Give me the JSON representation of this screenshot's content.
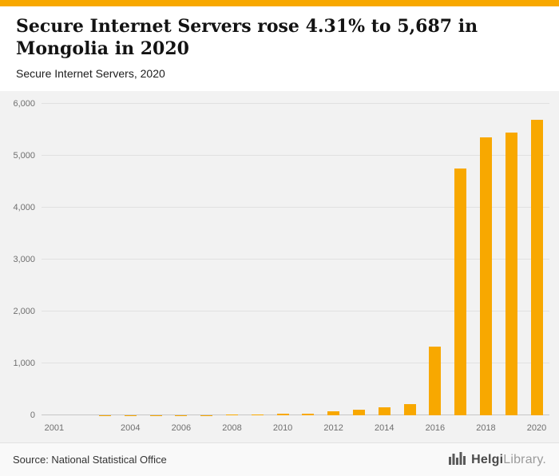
{
  "accent_color": "#F8A800",
  "header": {
    "title": "Secure Internet Servers rose 4.31% to 5,687 in Mongolia in 2020",
    "subtitle": "Secure Internet Servers, 2020"
  },
  "footer": {
    "source": "Source: National Statistical Office",
    "brand_bold": "Helgi",
    "brand_light": "Library."
  },
  "chart_data": {
    "type": "bar",
    "title": "Secure Internet Servers, 2020",
    "categories": [
      "2001",
      "2002",
      "2003",
      "2004",
      "2005",
      "2006",
      "2007",
      "2008",
      "2009",
      "2010",
      "2011",
      "2012",
      "2013",
      "2014",
      "2015",
      "2016",
      "2017",
      "2018",
      "2019",
      "2020"
    ],
    "values": [
      1,
      1,
      2,
      2,
      3,
      4,
      5,
      8,
      12,
      30,
      35,
      70,
      105,
      160,
      210,
      1330,
      4750,
      5350,
      5452,
      5687
    ],
    "bar_color": "#F8A800",
    "xlabel": "",
    "ylabel": "",
    "ylim": [
      0,
      6000
    ],
    "ytick_step": 1000,
    "yticks": [
      "0",
      "1,000",
      "2,000",
      "3,000",
      "4,000",
      "5,000",
      "6,000"
    ],
    "xtick_labels": [
      "2001",
      "2004",
      "2006",
      "2008",
      "2010",
      "2012",
      "2014",
      "2016",
      "2018",
      "2020"
    ],
    "grid": true,
    "legend": false
  }
}
